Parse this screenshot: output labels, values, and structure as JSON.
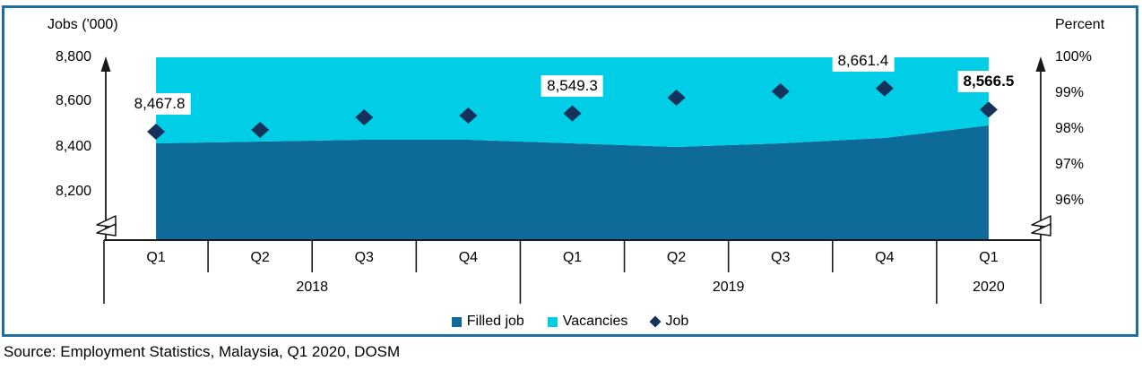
{
  "axes": {
    "left": {
      "title": "Jobs ('000)",
      "ticks": [
        "8,800",
        "8,600",
        "8,400",
        "8,200"
      ],
      "broken": true
    },
    "right": {
      "title": "Percent",
      "ticks": [
        "100%",
        "99%",
        "98%",
        "97%",
        "96%"
      ],
      "broken": true
    }
  },
  "x_axis": {
    "quarters": [
      "Q1",
      "Q2",
      "Q3",
      "Q4",
      "Q1",
      "Q2",
      "Q3",
      "Q4",
      "Q1"
    ],
    "years": [
      {
        "label": "2018",
        "span": 4
      },
      {
        "label": "2019",
        "span": 4
      },
      {
        "label": "2020",
        "span": 1
      }
    ]
  },
  "legend": {
    "items": [
      {
        "label": "Filled job",
        "marker": "square",
        "color": "#0D6A99"
      },
      {
        "label": "Vacancies",
        "marker": "square",
        "color": "#00CEE6"
      },
      {
        "label": "Job",
        "marker": "diamond",
        "color": "#15325B"
      }
    ]
  },
  "point_labels": [
    {
      "index": 0,
      "text": "8,467.8",
      "bold": false,
      "dx": 4
    },
    {
      "index": 4,
      "text": "8,549.3",
      "bold": false,
      "dx": 0
    },
    {
      "index": 7,
      "text": "8,661.4",
      "bold": false,
      "dx": -24
    },
    {
      "index": 8,
      "text": "8,566.5",
      "bold": true,
      "dx": 0
    }
  ],
  "source": "Source: Employment Statistics, Malaysia, Q1 2020, DOSM",
  "colors": {
    "filled_area": "#0D6A99",
    "vacancies_area": "#00CEE6",
    "job_marker": "#15325B",
    "axis_line": "#1a1a1a",
    "frame_border": "#1E6F9F"
  },
  "chart_data": {
    "type": "combo: 100%-stacked area (right axis) + diamond scatter (left axis)",
    "categories": [
      "Q1 2018",
      "Q2 2018",
      "Q3 2018",
      "Q4 2018",
      "Q1 2019",
      "Q2 2019",
      "Q3 2019",
      "Q4 2019",
      "Q1 2020"
    ],
    "series": [
      {
        "name": "Filled job",
        "type": "area",
        "axis": "right",
        "unit": "%",
        "values": [
          97.6,
          97.65,
          97.7,
          97.7,
          97.6,
          97.5,
          97.6,
          97.75,
          98.1
        ]
      },
      {
        "name": "Vacancies",
        "type": "area",
        "axis": "right",
        "unit": "%",
        "values": [
          2.4,
          2.35,
          2.3,
          2.3,
          2.4,
          2.5,
          2.4,
          2.25,
          1.9
        ],
        "note": "stacked on Filled job up to 100%"
      },
      {
        "name": "Job",
        "type": "scatter",
        "axis": "left",
        "unit": "'000 jobs",
        "values": [
          8467.8,
          8476,
          8532,
          8540,
          8549.3,
          8620,
          8648,
          8661.4,
          8566.5
        ],
        "labeled_points": {
          "0": "8,467.8",
          "4": "8,549.3",
          "7": "8,661.4",
          "8": "8,566.5"
        }
      }
    ],
    "left_axis": {
      "label": "Jobs ('000)",
      "tick_values": [
        8800,
        8600,
        8400,
        8200
      ],
      "broken_axis": true
    },
    "right_axis": {
      "label": "Percent",
      "tick_values": [
        100,
        99,
        98,
        97,
        96
      ],
      "broken_axis": true
    },
    "legend_position": "bottom-center",
    "grid": false
  }
}
